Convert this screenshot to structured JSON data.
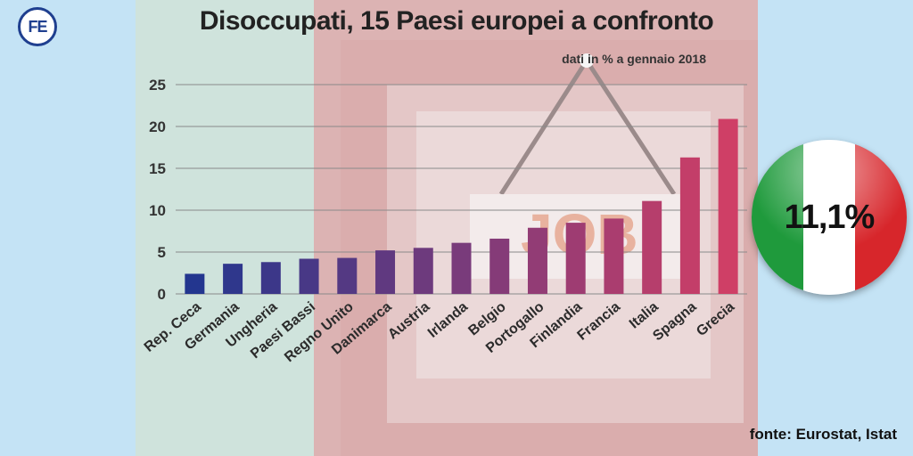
{
  "logo": {
    "text": "FE"
  },
  "header": {
    "title": "Disoccupati, 15 Paesi europei a confronto",
    "subtitle": "dati in % a gennaio 2018"
  },
  "badge": {
    "value": "11,1%",
    "flag_colors": [
      "#1f9a3c",
      "#ffffff",
      "#d7262b"
    ]
  },
  "source": "fonte: Eurostat, Istat",
  "colors": {
    "background": "#c4e3f5",
    "low": "#23368f",
    "high": "#cf3f66"
  },
  "chart_data": {
    "type": "bar",
    "title": "Disoccupati, 15 Paesi europei a confronto",
    "subtitle": "dati in % a gennaio 2018",
    "categories": [
      "Rep. Ceca",
      "Germania",
      "Ungheria",
      "Paesi Bassi",
      "Regno Unito",
      "Danimarca",
      "Austria",
      "Irlanda",
      "Belgio",
      "Portogallo",
      "Finlandia",
      "Francia",
      "Italia",
      "Spagna",
      "Grecia"
    ],
    "values": [
      2.4,
      3.6,
      3.8,
      4.2,
      4.3,
      5.2,
      5.5,
      6.1,
      6.6,
      7.9,
      8.5,
      9.0,
      11.1,
      16.3,
      20.9
    ],
    "ylim": [
      0,
      25
    ],
    "yticks": [
      0,
      5,
      10,
      15,
      20,
      25
    ],
    "grid": true,
    "xlabel": "",
    "ylabel": ""
  }
}
